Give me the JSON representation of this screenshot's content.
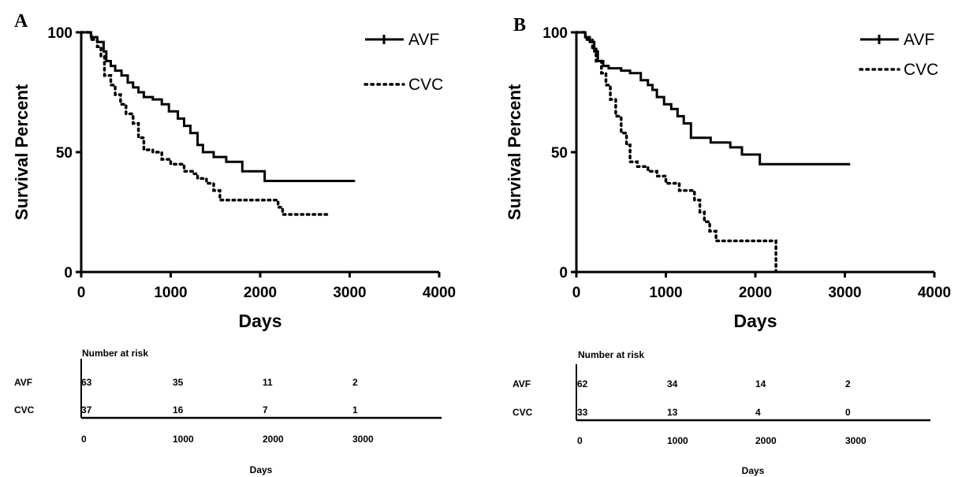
{
  "chart_data": [
    {
      "panel_label": "A",
      "type": "line",
      "xlabel": "Days",
      "ylabel": "Survival Percent",
      "xlim": [
        0,
        4000
      ],
      "ylim": [
        0,
        100
      ],
      "x_ticks": [
        "0",
        "1000",
        "2000",
        "3000",
        "4000"
      ],
      "y_ticks": [
        "0",
        "50",
        "100"
      ],
      "legend_position": "top-right",
      "series": [
        {
          "name": "AVF",
          "style": "solid",
          "points": [
            [
              0,
              100
            ],
            [
              110,
              100
            ],
            [
              110,
              98
            ],
            [
              180,
              98
            ],
            [
              180,
              96
            ],
            [
              250,
              96
            ],
            [
              250,
              92
            ],
            [
              280,
              92
            ],
            [
              280,
              88
            ],
            [
              330,
              88
            ],
            [
              330,
              86
            ],
            [
              380,
              86
            ],
            [
              380,
              84
            ],
            [
              450,
              84
            ],
            [
              450,
              82
            ],
            [
              520,
              82
            ],
            [
              520,
              79
            ],
            [
              580,
              79
            ],
            [
              580,
              77
            ],
            [
              640,
              77
            ],
            [
              640,
              75
            ],
            [
              700,
              75
            ],
            [
              700,
              73
            ],
            [
              800,
              73
            ],
            [
              800,
              72
            ],
            [
              900,
              72
            ],
            [
              900,
              70
            ],
            [
              980,
              70
            ],
            [
              980,
              67
            ],
            [
              1080,
              67
            ],
            [
              1080,
              64
            ],
            [
              1150,
              64
            ],
            [
              1150,
              61
            ],
            [
              1220,
              61
            ],
            [
              1220,
              58
            ],
            [
              1300,
              58
            ],
            [
              1300,
              53
            ],
            [
              1360,
              53
            ],
            [
              1360,
              50
            ],
            [
              1480,
              50
            ],
            [
              1480,
              48
            ],
            [
              1620,
              48
            ],
            [
              1620,
              46
            ],
            [
              1800,
              46
            ],
            [
              1800,
              42
            ],
            [
              2050,
              42
            ],
            [
              2050,
              38
            ],
            [
              3060,
              38
            ]
          ]
        },
        {
          "name": "CVC",
          "style": "dotted",
          "points": [
            [
              0,
              100
            ],
            [
              110,
              100
            ],
            [
              110,
              97
            ],
            [
              180,
              97
            ],
            [
              180,
              94
            ],
            [
              220,
              94
            ],
            [
              220,
              90
            ],
            [
              260,
              90
            ],
            [
              260,
              82
            ],
            [
              330,
              82
            ],
            [
              330,
              78
            ],
            [
              380,
              78
            ],
            [
              380,
              74
            ],
            [
              440,
              74
            ],
            [
              440,
              70
            ],
            [
              500,
              70
            ],
            [
              500,
              66
            ],
            [
              580,
              66
            ],
            [
              580,
              62
            ],
            [
              640,
              62
            ],
            [
              640,
              56
            ],
            [
              700,
              56
            ],
            [
              700,
              51
            ],
            [
              800,
              51
            ],
            [
              800,
              50
            ],
            [
              900,
              50
            ],
            [
              900,
              47
            ],
            [
              1000,
              47
            ],
            [
              1000,
              45
            ],
            [
              1150,
              45
            ],
            [
              1150,
              42
            ],
            [
              1250,
              42
            ],
            [
              1250,
              41
            ],
            [
              1300,
              41
            ],
            [
              1300,
              39
            ],
            [
              1400,
              39
            ],
            [
              1400,
              37
            ],
            [
              1480,
              37
            ],
            [
              1480,
              34
            ],
            [
              1550,
              34
            ],
            [
              1550,
              30
            ],
            [
              2200,
              30
            ],
            [
              2200,
              27
            ],
            [
              2250,
              27
            ],
            [
              2250,
              24
            ],
            [
              2750,
              24
            ]
          ]
        }
      ]
    },
    {
      "panel_label": "B",
      "type": "line",
      "xlabel": "Days",
      "ylabel": "Survival Percent",
      "xlim": [
        0,
        4000
      ],
      "ylim": [
        0,
        100
      ],
      "x_ticks": [
        "0",
        "1000",
        "2000",
        "3000",
        "4000"
      ],
      "y_ticks": [
        "0",
        "50",
        "100"
      ],
      "legend_position": "top-right",
      "series": [
        {
          "name": "AVF",
          "style": "solid",
          "points": [
            [
              0,
              100
            ],
            [
              100,
              100
            ],
            [
              100,
              98
            ],
            [
              150,
              98
            ],
            [
              150,
              96
            ],
            [
              200,
              96
            ],
            [
              200,
              92
            ],
            [
              240,
              92
            ],
            [
              240,
              88
            ],
            [
              300,
              88
            ],
            [
              300,
              86
            ],
            [
              360,
              86
            ],
            [
              360,
              85
            ],
            [
              500,
              85
            ],
            [
              500,
              84
            ],
            [
              600,
              84
            ],
            [
              600,
              83
            ],
            [
              720,
              83
            ],
            [
              720,
              80
            ],
            [
              800,
              80
            ],
            [
              800,
              78
            ],
            [
              850,
              78
            ],
            [
              850,
              76
            ],
            [
              900,
              76
            ],
            [
              900,
              73
            ],
            [
              980,
              73
            ],
            [
              980,
              70
            ],
            [
              1060,
              70
            ],
            [
              1060,
              68
            ],
            [
              1130,
              68
            ],
            [
              1130,
              65
            ],
            [
              1200,
              65
            ],
            [
              1200,
              62
            ],
            [
              1280,
              62
            ],
            [
              1280,
              56
            ],
            [
              1500,
              56
            ],
            [
              1500,
              54
            ],
            [
              1720,
              54
            ],
            [
              1720,
              52
            ],
            [
              1850,
              52
            ],
            [
              1850,
              49
            ],
            [
              2050,
              49
            ],
            [
              2050,
              45
            ],
            [
              3060,
              45
            ]
          ]
        },
        {
          "name": "CVC",
          "style": "dotted",
          "points": [
            [
              0,
              100
            ],
            [
              100,
              100
            ],
            [
              100,
              97
            ],
            [
              180,
              97
            ],
            [
              180,
              93
            ],
            [
              220,
              93
            ],
            [
              220,
              88
            ],
            [
              280,
              88
            ],
            [
              280,
              83
            ],
            [
              330,
              83
            ],
            [
              330,
              78
            ],
            [
              380,
              78
            ],
            [
              380,
              72
            ],
            [
              440,
              72
            ],
            [
              440,
              65
            ],
            [
              500,
              65
            ],
            [
              500,
              58
            ],
            [
              560,
              58
            ],
            [
              560,
              53
            ],
            [
              600,
              53
            ],
            [
              600,
              46
            ],
            [
              680,
              46
            ],
            [
              680,
              44
            ],
            [
              800,
              44
            ],
            [
              800,
              42
            ],
            [
              900,
              42
            ],
            [
              900,
              40
            ],
            [
              1000,
              40
            ],
            [
              1000,
              37
            ],
            [
              1150,
              37
            ],
            [
              1150,
              34
            ],
            [
              1320,
              34
            ],
            [
              1320,
              30
            ],
            [
              1380,
              30
            ],
            [
              1380,
              25
            ],
            [
              1430,
              25
            ],
            [
              1430,
              21
            ],
            [
              1490,
              21
            ],
            [
              1490,
              17
            ],
            [
              1560,
              17
            ],
            [
              1560,
              13
            ],
            [
              2230,
              13
            ],
            [
              2230,
              0
            ]
          ]
        }
      ]
    }
  ],
  "risk_tables": [
    {
      "title": "Number at risk",
      "rows": [
        {
          "label": "AVF",
          "values": [
            "63",
            "35",
            "11",
            "2"
          ]
        },
        {
          "label": "CVC",
          "values": [
            "37",
            "16",
            "7",
            "1"
          ]
        }
      ],
      "x_ticks": [
        "0",
        "1000",
        "2000",
        "3000"
      ],
      "xlabel": "Days"
    },
    {
      "title": "Number at risk",
      "rows": [
        {
          "label": "AVF",
          "values": [
            "62",
            "34",
            "14",
            "2"
          ]
        },
        {
          "label": "CVC",
          "values": [
            "33",
            "13",
            "4",
            "0"
          ]
        }
      ],
      "x_ticks": [
        "0",
        "1000",
        "2000",
        "3000"
      ],
      "xlabel": "Days"
    }
  ]
}
